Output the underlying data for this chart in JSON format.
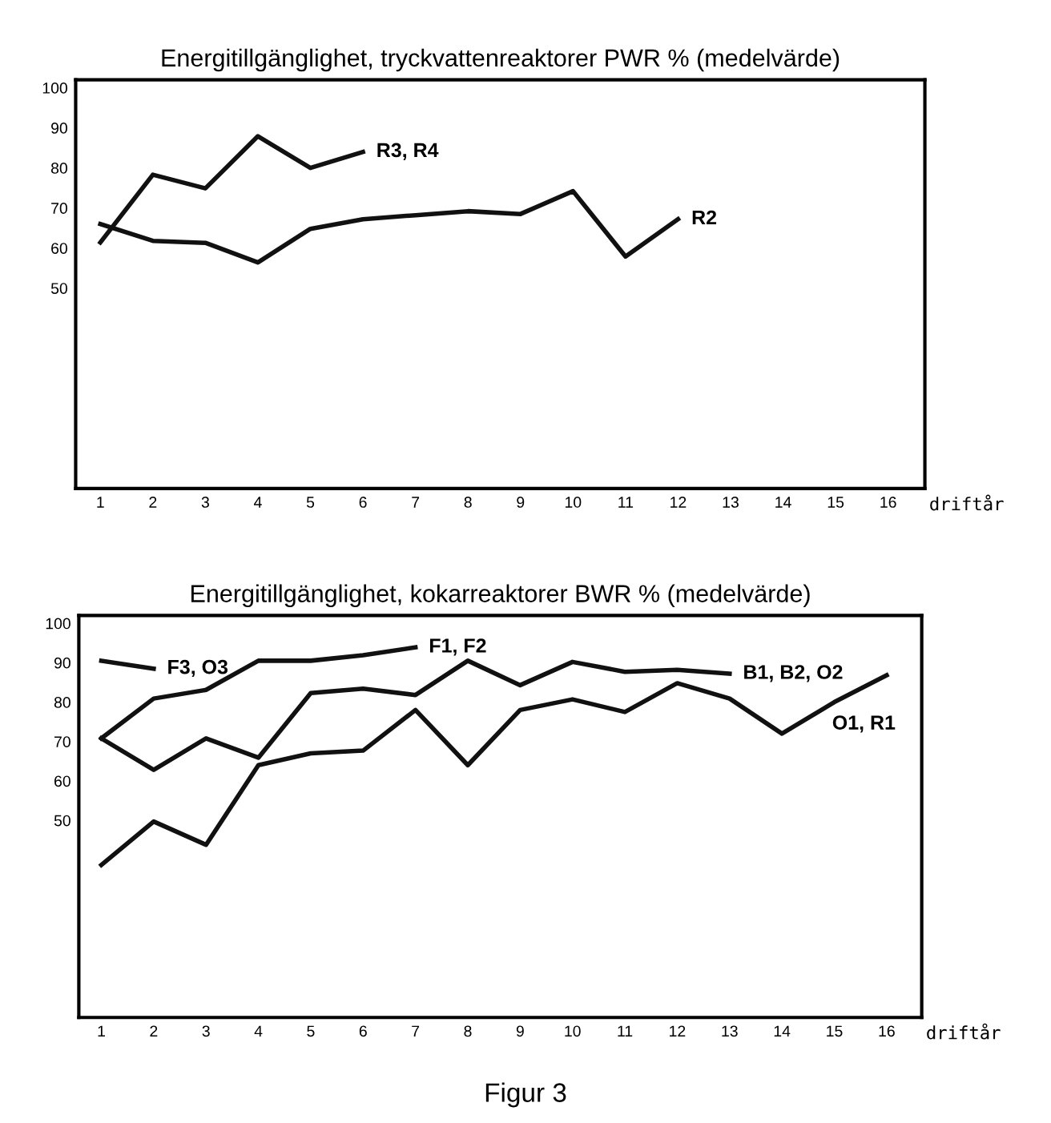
{
  "chart_data": [
    {
      "type": "line",
      "title": "Energitillgänglighet, tryckvattenreaktorer PWR % (medelvärde)",
      "xlabel": "driftår",
      "x": [
        1,
        2,
        3,
        4,
        5,
        6,
        7,
        8,
        9,
        10,
        11,
        12
      ],
      "series": [
        {
          "name": "R3, R4",
          "color": "#111111",
          "values": [
            61.4,
            78.3,
            74.9,
            87.9,
            80,
            84,
            null,
            null,
            null,
            null,
            null,
            null
          ]
        },
        {
          "name": "R2",
          "color": "#111111",
          "values": [
            66,
            61.8,
            61.3,
            56.4,
            64.8,
            67.2,
            68.2,
            69.2,
            68.5,
            74.2,
            57.9,
            67.2
          ]
        }
      ],
      "xlim": [
        0.53,
        16.7
      ],
      "xticks": [
        1,
        2,
        3,
        4,
        5,
        6,
        7,
        8,
        9,
        10,
        11,
        12,
        13,
        14,
        15,
        16
      ],
      "ylim": [
        0,
        102
      ],
      "yticks": [
        50,
        60,
        70,
        80,
        90,
        100
      ],
      "grid": false,
      "marker": "none",
      "line_style": "solid"
    },
    {
      "type": "line",
      "title": "Energitillgänglighet, kokarreaktorer BWR % (medelvärde)",
      "xlabel": "driftår",
      "x": [
        1,
        2,
        3,
        4,
        5,
        6,
        7,
        8,
        9,
        10,
        11,
        12,
        13,
        14,
        15,
        16
      ],
      "series": [
        {
          "name": "F3, O3",
          "color": "#111111",
          "values": [
            90.5,
            88.5,
            null,
            null,
            null,
            null,
            null,
            null,
            null,
            null,
            null,
            null,
            null,
            null,
            null,
            null
          ]
        },
        {
          "name": "F1, F2",
          "color": "#111111",
          "values": [
            70.8,
            80.9,
            83.1,
            90.5,
            90.5,
            91.9,
            93.9,
            null,
            null,
            null,
            null,
            null,
            null,
            null,
            null,
            null
          ]
        },
        {
          "name": "B1, B2, O2",
          "color": "#111111",
          "values": [
            70.8,
            62.8,
            70.8,
            65.9,
            82.3,
            83.4,
            81.8,
            90.5,
            84.3,
            90.2,
            87.7,
            88.2,
            87.2,
            null,
            null,
            null
          ]
        },
        {
          "name": "O1, R1",
          "color": "#111111",
          "values": [
            38.7,
            49.7,
            43.8,
            64,
            67,
            67.7,
            78,
            64,
            78,
            80.7,
            77.5,
            84.8,
            80.9,
            72,
            80,
            86.8
          ]
        }
      ],
      "xlim": [
        0.57,
        16.67
      ],
      "xticks": [
        1,
        2,
        3,
        4,
        5,
        6,
        7,
        8,
        9,
        10,
        11,
        12,
        13,
        14,
        15,
        16
      ],
      "ylim": [
        0,
        102
      ],
      "yticks": [
        50,
        60,
        70,
        80,
        90,
        100
      ],
      "grid": false,
      "marker": "none",
      "line_style": "solid",
      "annotations": [
        "Figur 3"
      ]
    }
  ]
}
